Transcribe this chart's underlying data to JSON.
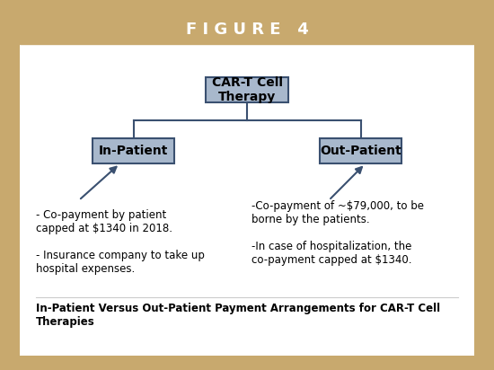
{
  "title": "F I G U R E   4",
  "title_bg": "#c8a96e",
  "title_text_color": "#ffffff",
  "outer_border_color": "#c8a96e",
  "inner_bg": "#ffffff",
  "box_fill": "#a8b8cc",
  "box_edge": "#3a5070",
  "box_text_color": "#000000",
  "top_box_label": "CAR-T Cell\nTherapy",
  "left_box_label": "In-Patient",
  "right_box_label": "Out-Patient",
  "left_annotation": "- Co-payment by patient\ncapped at $1340 in 2018.\n\n- Insurance company to take up\nhospital expenses.",
  "right_annotation": "-Co-payment of ~$79,000, to be\nborne by the patients.\n\n-In case of hospitalization, the\nco-payment capped at $1340.",
  "caption": "In-Patient Versus Out-Patient Payment Arrangements for CAR-T Cell\nTherapies",
  "line_color": "#3a5070",
  "arrow_color": "#3a5070"
}
